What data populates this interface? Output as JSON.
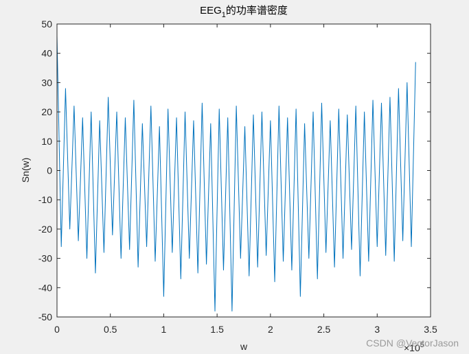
{
  "chart_data": {
    "type": "line",
    "title": [
      "EEG",
      "1",
      "的功率谱密度"
    ],
    "xlabel": "w",
    "ylabel": "Sn(w)",
    "x_multiplier": {
      "base": "×10",
      "exponent": "5"
    },
    "watermark": "CSDN @VectorJason",
    "x": [
      0,
      0.04,
      0.08,
      0.12,
      0.16,
      0.2,
      0.24,
      0.28,
      0.32,
      0.36,
      0.4,
      0.44,
      0.48,
      0.52,
      0.56,
      0.6,
      0.64,
      0.68,
      0.72,
      0.76,
      0.8,
      0.84,
      0.88,
      0.92,
      0.96,
      1,
      1.04,
      1.08,
      1.12,
      1.16,
      1.2,
      1.24,
      1.28,
      1.32,
      1.36,
      1.4,
      1.44,
      1.48,
      1.52,
      1.56,
      1.6,
      1.64,
      1.68,
      1.72,
      1.76,
      1.8,
      1.84,
      1.88,
      1.92,
      1.96,
      2,
      2.04,
      2.08,
      2.12,
      2.16,
      2.2,
      2.24,
      2.28,
      2.32,
      2.36,
      2.4,
      2.44,
      2.48,
      2.52,
      2.56,
      2.6,
      2.64,
      2.68,
      2.72,
      2.76,
      2.8,
      2.84,
      2.88,
      2.92,
      2.96,
      3,
      3.04,
      3.08,
      3.12,
      3.16,
      3.2,
      3.24,
      3.28,
      3.32,
      3.36
    ],
    "series": [
      {
        "color": "#0072bd",
        "values": [
          46,
          -26,
          28,
          -20,
          22,
          -24,
          18,
          -30,
          20,
          -35,
          17,
          -28,
          25,
          -22,
          20,
          -30,
          18,
          -27,
          24,
          -33,
          16,
          -26,
          22,
          -31,
          15,
          -43,
          21,
          -28,
          18,
          -37,
          20,
          -30,
          17,
          -35,
          23,
          -32,
          16,
          -48,
          21,
          -34,
          18,
          -48,
          22,
          -30,
          15,
          -36,
          19,
          -33,
          20,
          -29,
          17,
          -38,
          22,
          -31,
          18,
          -34,
          21,
          -43,
          16,
          -30,
          20,
          -37,
          23,
          -28,
          17,
          -33,
          21,
          -30,
          19,
          -27,
          22,
          -36,
          20,
          -31,
          24,
          -26,
          23,
          -29,
          25,
          -31,
          28,
          -24,
          30,
          -26,
          37
        ]
      }
    ],
    "xlim": [
      0,
      3.5
    ],
    "xticks": [
      0,
      0.5,
      1,
      1.5,
      2,
      2.5,
      3,
      3.5
    ],
    "ylim": [
      -50,
      50
    ],
    "yticks": [
      -50,
      -40,
      -30,
      -20,
      -10,
      0,
      10,
      20,
      30,
      40,
      50
    ]
  }
}
